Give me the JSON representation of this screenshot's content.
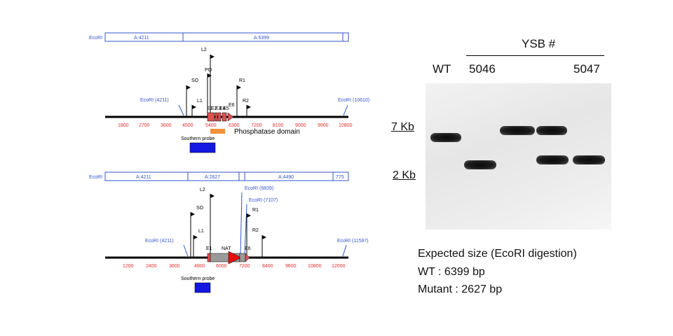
{
  "map1": {
    "enzyme_left": "EcoRI",
    "segments": [
      "A:4211",
      "A:6399"
    ],
    "sites": [
      "EcoRI (4211)",
      "EcoRI (10610)"
    ],
    "primers": [
      "L2",
      "SO",
      "PO",
      "R1",
      "L1",
      "R2"
    ],
    "exons": [
      "E1",
      "E2",
      "E3",
      "E4",
      "E5",
      "E6"
    ],
    "ticks": [
      "1800",
      "2700",
      "3600",
      "4500",
      "5400",
      "6300",
      "7200",
      "8100",
      "9000",
      "9900",
      "10800"
    ],
    "domain_label": "Phosphatase domain",
    "probe_label": "Southern probe"
  },
  "map2": {
    "enzyme_left": "EcoRI",
    "segments": [
      "A:4211",
      "A:2627",
      "A:4490",
      "775"
    ],
    "sites": [
      "EcoRI (4211)",
      "EcoRI (6839)",
      "EcoRI (7107)",
      "EcoRI (11597)"
    ],
    "primers": [
      "L2",
      "SO",
      "L1",
      "R1",
      "R2"
    ],
    "exons": [
      "E1",
      "NAT",
      "E6"
    ],
    "ticks": [
      "1200",
      "2400",
      "3600",
      "4800",
      "6000",
      "7200",
      "8400",
      "9600",
      "10800",
      "12000"
    ],
    "probe_label": "Southern probe"
  },
  "blot": {
    "group_label": "YSB #",
    "lanes": [
      "WT",
      "5046",
      "5047"
    ],
    "markers": [
      "7 Kb",
      "2 Kb"
    ]
  },
  "expected": {
    "title": "Expected size (EcoRI digestion)",
    "wt": "WT : 6399 bp",
    "mutant": "Mutant : 2627 bp"
  }
}
